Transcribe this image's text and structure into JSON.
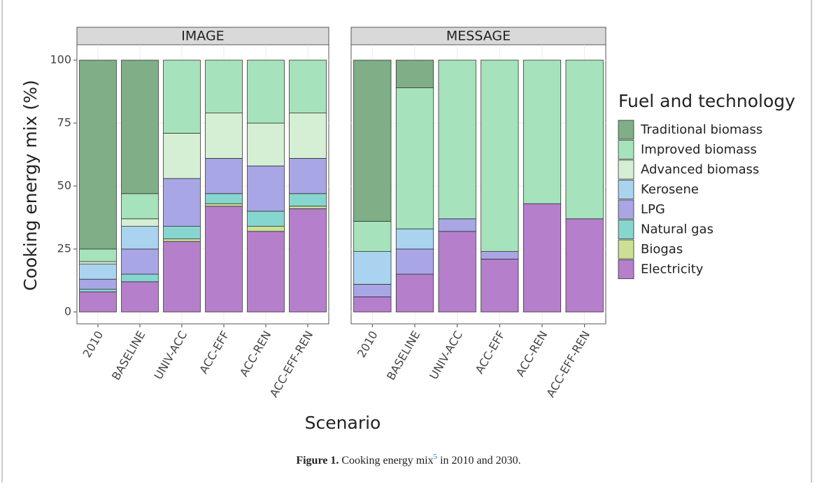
{
  "chart_data": [
    {
      "type": "bar",
      "stacked": true,
      "title": "IMAGE",
      "y_label": "Cooking energy mix (%)",
      "x_label": "Scenario",
      "legend_title": "Fuel and technology",
      "categories": [
        "2010",
        "BASELINE",
        "UNIV-ACC",
        "ACC-EFF",
        "ACC-REN",
        "ACC-EFF-REN"
      ],
      "ylim": [
        0,
        100
      ],
      "yticks": [
        0,
        25,
        50,
        75,
        100
      ],
      "grid": true,
      "series": [
        {
          "name": "Electricity",
          "color": "#b57fcb",
          "values": [
            8,
            12,
            28,
            42,
            32,
            41
          ]
        },
        {
          "name": "Biogas",
          "color": "#cbe095",
          "values": [
            0,
            0,
            1,
            1,
            2,
            1
          ]
        },
        {
          "name": "Natural gas",
          "color": "#86d6cf",
          "values": [
            1,
            3,
            5,
            4,
            6,
            5
          ]
        },
        {
          "name": "LPG",
          "color": "#a8a6e4",
          "values": [
            4,
            10,
            19,
            14,
            18,
            14
          ]
        },
        {
          "name": "Kerosene",
          "color": "#aad3ef",
          "values": [
            6,
            9,
            0,
            0,
            0,
            0
          ]
        },
        {
          "name": "Advanced biomass",
          "color": "#d4efd4",
          "values": [
            1,
            3,
            18,
            18,
            17,
            18
          ]
        },
        {
          "name": "Improved biomass",
          "color": "#a6e3bc",
          "values": [
            5,
            10,
            29,
            21,
            25,
            21
          ]
        },
        {
          "name": "Traditional biomass",
          "color": "#7fae87",
          "values": [
            75,
            53,
            0,
            0,
            0,
            0
          ]
        }
      ]
    },
    {
      "type": "bar",
      "stacked": true,
      "title": "MESSAGE",
      "categories": [
        "2010",
        "BASELINE",
        "UNIV-ACC",
        "ACC-EFF",
        "ACC-REN",
        "ACC-EFF-REN"
      ],
      "ylim": [
        0,
        100
      ],
      "yticks": [
        0,
        25,
        50,
        75,
        100
      ],
      "grid": true,
      "series": [
        {
          "name": "Electricity",
          "color": "#b57fcb",
          "values": [
            6,
            15,
            32,
            21,
            43,
            37
          ]
        },
        {
          "name": "Biogas",
          "color": "#cbe095",
          "values": [
            0,
            0,
            0,
            0,
            0,
            0
          ]
        },
        {
          "name": "Natural gas",
          "color": "#86d6cf",
          "values": [
            0,
            0,
            0,
            0,
            0,
            0
          ]
        },
        {
          "name": "LPG",
          "color": "#a8a6e4",
          "values": [
            5,
            10,
            5,
            3,
            0,
            0
          ]
        },
        {
          "name": "Kerosene",
          "color": "#aad3ef",
          "values": [
            13,
            8,
            0,
            0,
            0,
            0
          ]
        },
        {
          "name": "Advanced biomass",
          "color": "#d4efd4",
          "values": [
            0,
            0,
            0,
            0,
            0,
            0
          ]
        },
        {
          "name": "Improved biomass",
          "color": "#a6e3bc",
          "values": [
            12,
            56,
            63,
            76,
            57,
            63
          ]
        },
        {
          "name": "Traditional biomass",
          "color": "#7fae87",
          "values": [
            64,
            11,
            0,
            0,
            0,
            0
          ]
        }
      ]
    }
  ],
  "caption": {
    "label": "Figure 1.",
    "text": "Cooking energy mix",
    "sup": "5",
    "rest": "in 2010 and 2030."
  }
}
